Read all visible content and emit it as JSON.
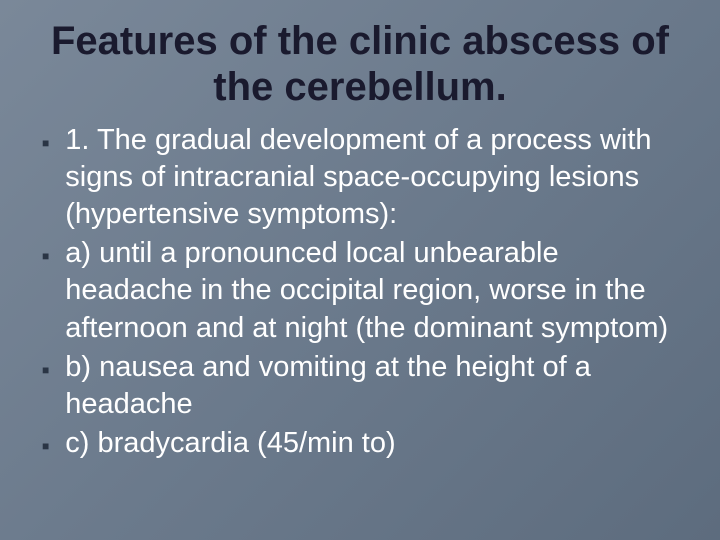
{
  "slide": {
    "title": "Features of the clinic abscess of the cerebellum.",
    "title_color": "#1a1a2e",
    "title_fontsize": 40,
    "background_gradient": [
      "#7a8899",
      "#6b7a8c",
      "#5d6c7e"
    ],
    "bullet_color": "#2a3545",
    "text_color": "#ffffff",
    "text_fontsize": 29,
    "bullets": [
      "1. The gradual development of a process with signs of intracranial space-occupying lesions (hypertensive symptoms):",
      "a) until a pronounced local unbearable headache in the occipital region, worse in the afternoon and at night (the dominant symptom)",
      "b) nausea and vomiting at the height of a headache",
      "c) bradycardia (45/min to)"
    ]
  }
}
